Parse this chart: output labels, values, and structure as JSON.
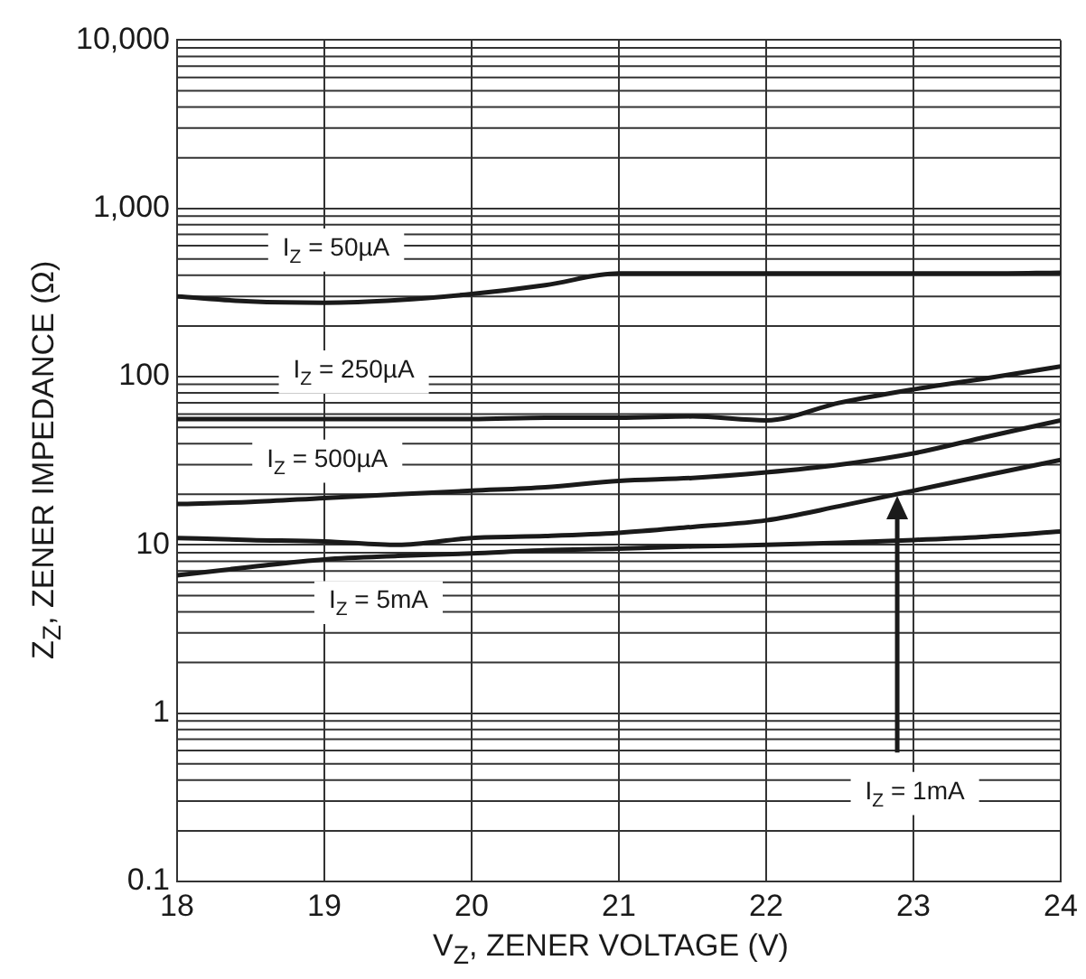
{
  "chart_data": {
    "type": "line",
    "xlabel": "V$_{Z}$, ZENER VOLTAGE (V)",
    "ylabel": "Z$_{Z}$, ZENER IMPEDANCE (Ω)",
    "x": [
      18,
      18.5,
      19,
      19.5,
      20,
      20.5,
      21,
      21.5,
      22,
      22.5,
      23,
      23.5,
      24
    ],
    "series": [
      {
        "name": "I$_{Z}$ = 50µA",
        "color": "#1a1a1a",
        "values": [
          300,
          280,
          275,
          285,
          310,
          350,
          410,
          410,
          410,
          410,
          410,
          410,
          415
        ]
      },
      {
        "name": "I$_{Z}$ = 250µA",
        "color": "#1a1a1a",
        "values": [
          56,
          56,
          56,
          56,
          56,
          57,
          57,
          58,
          55,
          70,
          84,
          98,
          115
        ]
      },
      {
        "name": "I$_{Z}$ = 500µA",
        "color": "#1a1a1a",
        "values": [
          17.5,
          18,
          19,
          20,
          21,
          22,
          24,
          25,
          27,
          30,
          35,
          44,
          55
        ]
      },
      {
        "name": "I$_{Z}$ = 1mA",
        "color": "#1a1a1a",
        "values": [
          11,
          10.7,
          10.5,
          10,
          11,
          11.3,
          11.8,
          12.8,
          14,
          17,
          21,
          26,
          32
        ]
      },
      {
        "name": "I$_{Z}$ = 5mA",
        "color": "#1a1a1a",
        "values": [
          6.6,
          7.4,
          8.2,
          8.6,
          8.9,
          9.3,
          9.5,
          9.8,
          10,
          10.3,
          10.7,
          11.2,
          12
        ]
      }
    ],
    "xlim": [
      18,
      24
    ],
    "xticks": [
      18,
      19,
      20,
      21,
      22,
      23,
      24
    ],
    "ylim": [
      0.1,
      10000
    ],
    "yticks": [
      0.1,
      1,
      10,
      100,
      {
        "value": 1000,
        "label": "1,000"
      },
      {
        "value": 10000,
        "label": "10,000"
      }
    ],
    "log": "y",
    "grid": true,
    "legend": false,
    "marker": "none",
    "line_style": "solid"
  }
}
